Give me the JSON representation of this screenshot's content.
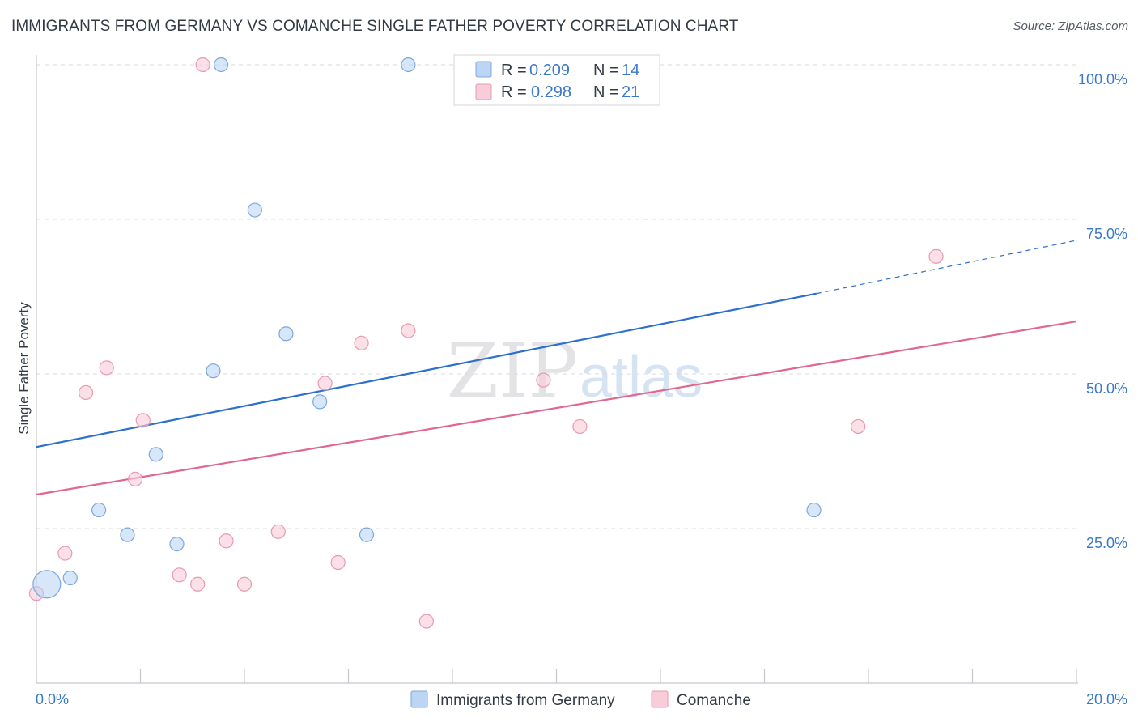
{
  "title": "IMMIGRANTS FROM GERMANY VS COMANCHE SINGLE FATHER POVERTY CORRELATION CHART",
  "source": "Source: ZipAtlas.com",
  "watermark": {
    "zip": "ZIP",
    "atlas": "atlas"
  },
  "colors": {
    "blue_fill": "#bcd5f4",
    "blue_stroke": "#7aa8e0",
    "blue_line": "#2c6fcd",
    "pink_fill": "#f8ccd9",
    "pink_stroke": "#e899b3",
    "pink_line": "#e0688f",
    "grid": "#d8dbe0",
    "axis": "#c4c7cc"
  },
  "legend": {
    "rows": [
      {
        "r_label": "R = ",
        "r_value": "0.209",
        "n_label": "N = ",
        "n_value": "14",
        "series": "blue"
      },
      {
        "r_label": "R = ",
        "r_value": "0.298",
        "n_label": "N = ",
        "n_value": "21",
        "series": "pink"
      }
    ]
  },
  "chart_data": {
    "type": "scatter",
    "title": "IMMIGRANTS FROM GERMANY VS COMANCHE SINGLE FATHER POVERTY CORRELATION CHART",
    "xlabel": "",
    "ylabel": "Single Father Poverty",
    "xlim": [
      0,
      20
    ],
    "ylim": [
      0,
      102.5
    ],
    "x_tick_labels": [
      "0.0%",
      "20.0%"
    ],
    "y_ticks": [
      25,
      50,
      75,
      100
    ],
    "y_tick_labels": [
      "25.0%",
      "50.0%",
      "75.0%",
      "100.0%"
    ],
    "grid": "horizontal dashed",
    "legend_position": "top-center",
    "series": [
      {
        "name": "Immigrants from Germany",
        "color": "blue",
        "r": 0.209,
        "n": 14,
        "points": [
          {
            "x": 0.2,
            "y": 16.0,
            "size": "large"
          },
          {
            "x": 0.65,
            "y": 17.0
          },
          {
            "x": 1.2,
            "y": 28.0
          },
          {
            "x": 1.75,
            "y": 24.0
          },
          {
            "x": 2.3,
            "y": 37.0
          },
          {
            "x": 2.7,
            "y": 22.5
          },
          {
            "x": 3.4,
            "y": 50.5
          },
          {
            "x": 3.55,
            "y": 100.0
          },
          {
            "x": 4.2,
            "y": 76.5
          },
          {
            "x": 4.8,
            "y": 56.5
          },
          {
            "x": 5.45,
            "y": 45.5
          },
          {
            "x": 6.35,
            "y": 24.0
          },
          {
            "x": 7.15,
            "y": 100.0
          },
          {
            "x": 14.95,
            "y": 28.0
          }
        ],
        "trend": {
          "x_start": 0,
          "y_start": 38.2,
          "x_solid_end": 15.0,
          "y_solid_end": 63.0,
          "x_end": 20,
          "y_end": 71.6
        }
      },
      {
        "name": "Comanche",
        "color": "pink",
        "r": 0.298,
        "n": 21,
        "points": [
          {
            "x": 0.0,
            "y": 14.5
          },
          {
            "x": 0.55,
            "y": 21.0
          },
          {
            "x": 0.95,
            "y": 47.0
          },
          {
            "x": 1.35,
            "y": 51.0
          },
          {
            "x": 1.9,
            "y": 33.0
          },
          {
            "x": 2.05,
            "y": 42.5
          },
          {
            "x": 2.75,
            "y": 17.5
          },
          {
            "x": 3.1,
            "y": 16.0
          },
          {
            "x": 3.2,
            "y": 100.0
          },
          {
            "x": 3.65,
            "y": 23.0
          },
          {
            "x": 4.0,
            "y": 16.0
          },
          {
            "x": 4.65,
            "y": 24.5
          },
          {
            "x": 5.55,
            "y": 48.5
          },
          {
            "x": 5.8,
            "y": 19.5
          },
          {
            "x": 6.25,
            "y": 55.0
          },
          {
            "x": 7.15,
            "y": 57.0
          },
          {
            "x": 7.5,
            "y": 10.0
          },
          {
            "x": 9.75,
            "y": 49.0
          },
          {
            "x": 10.45,
            "y": 41.5
          },
          {
            "x": 15.8,
            "y": 41.5
          },
          {
            "x": 17.3,
            "y": 69.0
          }
        ],
        "trend": {
          "x_start": 0,
          "y_start": 30.5,
          "x_end": 20,
          "y_end": 58.5
        }
      }
    ]
  }
}
